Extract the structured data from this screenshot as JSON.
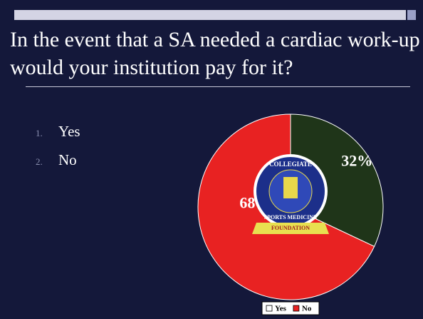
{
  "chart_data": {
    "type": "pie",
    "title": "In the event that a SA needed a cardiac work-up would your institution pay for it?",
    "categories": [
      "Yes",
      "No"
    ],
    "values": [
      32,
      68
    ],
    "value_labels": [
      "32%",
      "68%"
    ],
    "colors": [
      "#1f3519",
      "#e82222"
    ],
    "legend": "bottom"
  },
  "list": [
    {
      "number": "1.",
      "text": "Yes"
    },
    {
      "number": "2.",
      "text": "No"
    }
  ],
  "logo": {
    "top": "COLLEGIATE",
    "bottom": "SPORTS MEDICINE",
    "ribbon": "FOUNDATION"
  }
}
